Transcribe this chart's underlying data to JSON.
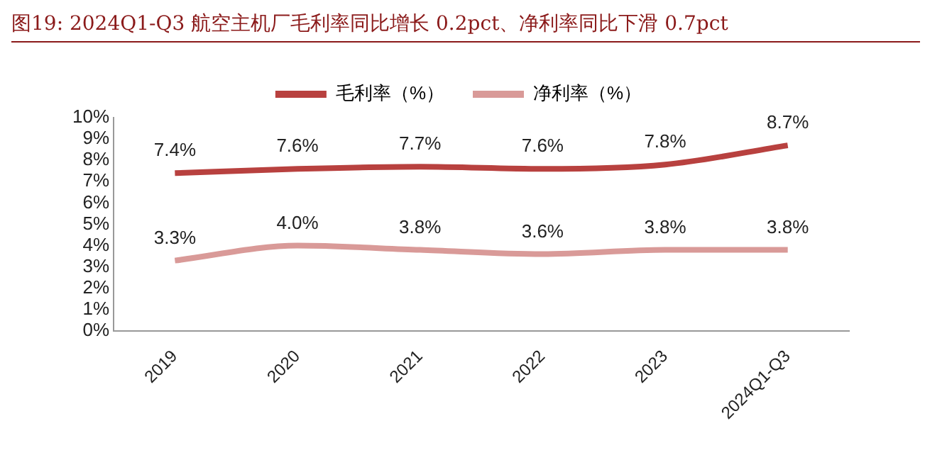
{
  "chart_data": {
    "type": "line",
    "title": "图19:  2024Q1-Q3 航空主机厂毛利率同比增长 0.2pct、净利率同比下滑 0.7pct",
    "categories": [
      "2019",
      "2020",
      "2021",
      "2022",
      "2023",
      "2024Q1-Q3"
    ],
    "series": [
      {
        "name": "毛利率（%）",
        "color": "#b8413f",
        "values": [
          7.4,
          7.6,
          7.7,
          7.6,
          7.8,
          8.7
        ],
        "value_labels": [
          "7.4%",
          "7.6%",
          "7.7%",
          "7.6%",
          "7.8%",
          "8.7%"
        ]
      },
      {
        "name": "净利率（%）",
        "color": "#d99a98",
        "values": [
          3.3,
          4.0,
          3.8,
          3.6,
          3.8,
          3.8
        ],
        "value_labels": [
          "3.3%",
          "4.0%",
          "3.8%",
          "3.6%",
          "3.8%",
          "3.8%"
        ]
      }
    ],
    "ylim": [
      0,
      10
    ],
    "yticks": [
      {
        "value": 0,
        "label": "0%"
      },
      {
        "value": 1,
        "label": "1%"
      },
      {
        "value": 2,
        "label": "2%"
      },
      {
        "value": 3,
        "label": "3%"
      },
      {
        "value": 4,
        "label": "4%"
      },
      {
        "value": 5,
        "label": "5%"
      },
      {
        "value": 6,
        "label": "6%"
      },
      {
        "value": 7,
        "label": "7%"
      },
      {
        "value": 8,
        "label": "8%"
      },
      {
        "value": 9,
        "label": "9%"
      },
      {
        "value": 10,
        "label": "10%"
      }
    ],
    "grid": false,
    "legend": "top",
    "marker": "none",
    "line_style": "solid"
  }
}
